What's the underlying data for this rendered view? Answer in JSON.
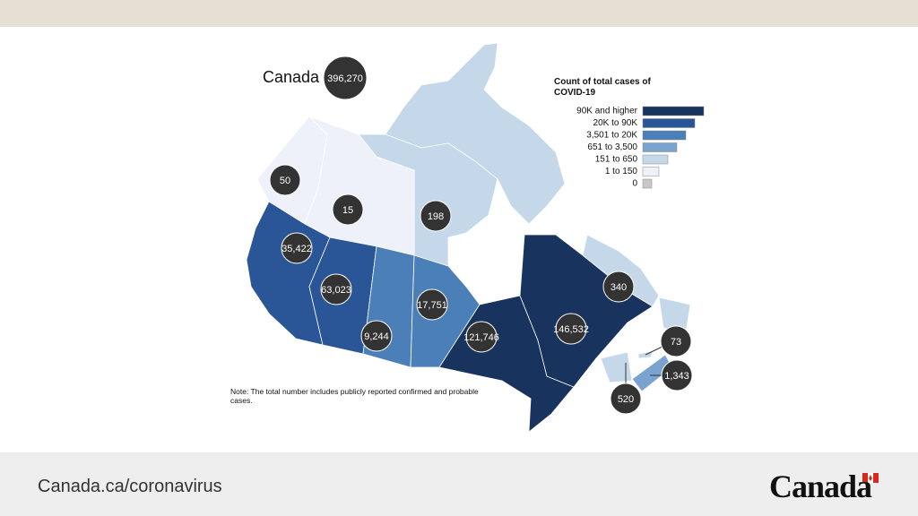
{
  "map": {
    "title": "Canada",
    "total": "396,270",
    "regions": [
      {
        "label": "50"
      },
      {
        "label": "15"
      },
      {
        "label": "198"
      },
      {
        "label": "35,422"
      },
      {
        "label": "63,023"
      },
      {
        "label": "9,244"
      },
      {
        "label": "17,751"
      },
      {
        "label": "121,746"
      },
      {
        "label": "146,532"
      },
      {
        "label": "340"
      },
      {
        "label": "73"
      },
      {
        "label": "1,343"
      },
      {
        "label": "520"
      }
    ]
  },
  "legend": {
    "title": "Count of total cases of COVID-19",
    "items": [
      {
        "label": "90K and higher",
        "color": "#17335e"
      },
      {
        "label": "20K to 90K",
        "color": "#2a5597"
      },
      {
        "label": "3,501 to 20K",
        "color": "#4a7fb8"
      },
      {
        "label": "651 to 3,500",
        "color": "#7aa3cf"
      },
      {
        "label": "151 to 650",
        "color": "#c5d8ea"
      },
      {
        "label": "1 to 150",
        "color": "#eef0fa"
      },
      {
        "label": "0",
        "color": "#c8c8c8"
      }
    ]
  },
  "note": "Note: The total number includes publicly reported confirmed and probable cases.",
  "footer": {
    "url": "Canada.ca/coronavirus",
    "wordmark": "Canada"
  }
}
